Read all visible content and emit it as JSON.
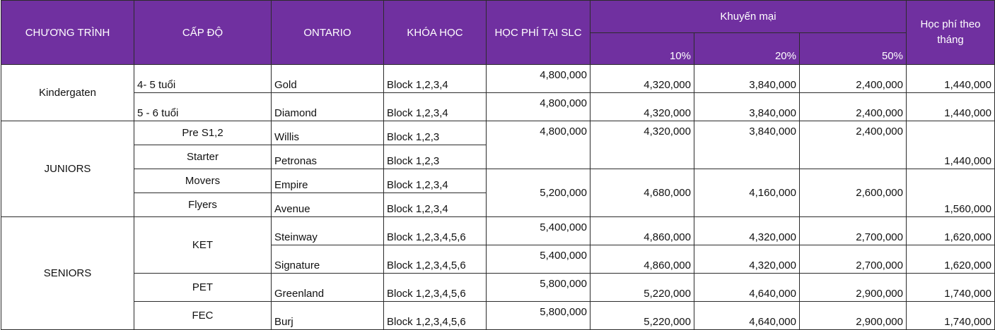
{
  "headers": {
    "program": "CHƯƠNG TRÌNH",
    "level": "CẤP ĐỘ",
    "ontario": "ONTARIO",
    "course": "KHÓA HỌC",
    "fee_slc": "HỌC PHÍ TẠI SLC",
    "promotion": "Khuyến mại",
    "pct10": "10%",
    "pct20": "20%",
    "pct50": "50%",
    "monthly": "Học phí theo tháng"
  },
  "kindergarten": {
    "program": "Kindergaten",
    "rows": [
      {
        "level": "4- 5 tuổi",
        "ontario": "Gold",
        "course": "Block 1,2,3,4",
        "fee": "4,800,000",
        "p10": "4,320,000",
        "p20": "3,840,000",
        "p50": "2,400,000",
        "monthly": "1,440,000"
      },
      {
        "level": "5 - 6 tuổi",
        "ontario": "Diamond",
        "course": "Block 1,2,3,4",
        "fee": "4,800,000",
        "p10": "4,320,000",
        "p20": "3,840,000",
        "p50": "2,400,000",
        "monthly": "1,440,000"
      }
    ]
  },
  "juniors": {
    "program": "JUNIORS",
    "rows": [
      {
        "level": "Pre S1,2",
        "ontario": "Willis",
        "course": "Block 1,2,3"
      },
      {
        "level": "Starter",
        "ontario": "Petronas",
        "course": "Block 1,2,3"
      },
      {
        "level": "Movers",
        "ontario": "Empire",
        "course": "Block 1,2,3,4"
      },
      {
        "level": "Flyers",
        "ontario": "Avenue",
        "course": "Block 1,2,3,4"
      }
    ],
    "group_a": {
      "fee": "4,800,000",
      "p10": "4,320,000",
      "p20": "3,840,000",
      "p50": "2,400,000",
      "monthly": "1,440,000"
    },
    "group_b": {
      "fee": "5,200,000",
      "p10": "4,680,000",
      "p20": "4,160,000",
      "p50": "2,600,000",
      "monthly": "1,560,000"
    }
  },
  "seniors": {
    "program": "SENIORS",
    "ket_level": "KET",
    "pet_level": "PET",
    "fec_level": "FEC",
    "rows": [
      {
        "ontario": "Steinway",
        "course": "Block 1,2,3,4,5,6",
        "fee": "5,400,000",
        "p10": "4,860,000",
        "p20": "4,320,000",
        "p50": "2,700,000",
        "monthly": "1,620,000"
      },
      {
        "ontario": "Signature",
        "course": "Block 1,2,3,4,5,6",
        "fee": "5,400,000",
        "p10": "4,860,000",
        "p20": "4,320,000",
        "p50": "2,700,000",
        "monthly": "1,620,000"
      },
      {
        "ontario": "Greenland",
        "course": "Block 1,2,3,4,5,6",
        "fee": "5,800,000",
        "p10": "5,220,000",
        "p20": "4,640,000",
        "p50": "2,900,000",
        "monthly": "1,740,000"
      },
      {
        "ontario": "Burj",
        "course": "Block 1,2,3,4,5,6",
        "fee": "5,800,000",
        "p10": "5,220,000",
        "p20": "4,640,000",
        "p50": "2,900,000",
        "monthly": "1,740,000"
      }
    ]
  },
  "colors": {
    "header_bg": "#7030a0",
    "header_text": "#ffffff",
    "border": "#2b2b2b"
  }
}
